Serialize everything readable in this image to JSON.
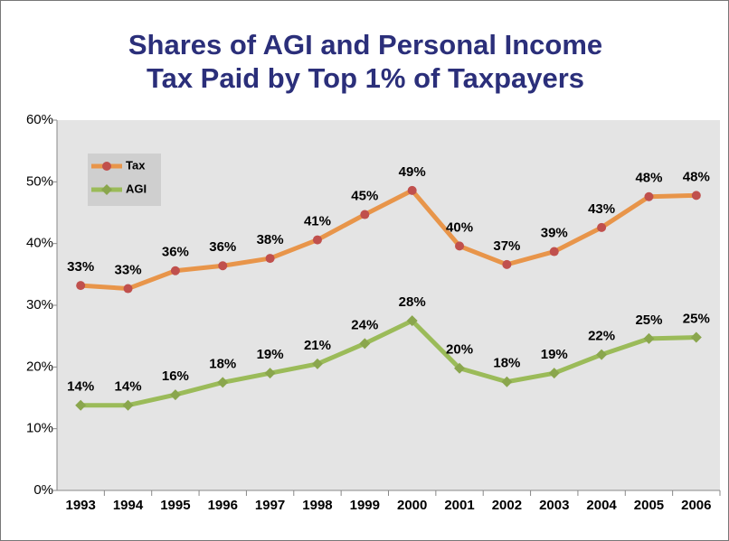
{
  "chart_data": {
    "type": "line",
    "title": [
      "Shares of AGI and Personal Income",
      "Tax Paid by Top 1% of Taxpayers"
    ],
    "categories": [
      "1993",
      "1994",
      "1995",
      "1996",
      "1997",
      "1998",
      "1999",
      "2000",
      "2001",
      "2002",
      "2003",
      "2004",
      "2005",
      "2006"
    ],
    "series": [
      {
        "name": "Tax",
        "color": "#e8954a",
        "marker_color": "#c0504d",
        "marker": "circle",
        "values": [
          33.2,
          32.7,
          35.6,
          36.4,
          37.6,
          40.6,
          44.7,
          48.6,
          39.6,
          36.6,
          38.7,
          42.6,
          47.6,
          47.8
        ],
        "value_labels": [
          "33%",
          "33%",
          "36%",
          "36%",
          "38%",
          "41%",
          "45%",
          "49%",
          "40%",
          "37%",
          "39%",
          "43%",
          "48%",
          "48%"
        ]
      },
      {
        "name": "AGI",
        "color": "#9bbb59",
        "marker_color": "#8aa64d",
        "marker": "diamond",
        "values": [
          13.8,
          13.8,
          15.5,
          17.5,
          19.0,
          20.5,
          23.8,
          27.5,
          19.8,
          17.6,
          19.0,
          22.0,
          24.6,
          24.8
        ],
        "value_labels": [
          "14%",
          "14%",
          "16%",
          "18%",
          "19%",
          "21%",
          "24%",
          "28%",
          "20%",
          "18%",
          "19%",
          "22%",
          "25%",
          "25%"
        ]
      }
    ],
    "ylim": [
      0,
      60
    ],
    "yticks": [
      {
        "value": 0,
        "label": "0%"
      },
      {
        "value": 10,
        "label": "10%"
      },
      {
        "value": 20,
        "label": "20%"
      },
      {
        "value": 30,
        "label": "30%"
      },
      {
        "value": 40,
        "label": "40%"
      },
      {
        "value": 50,
        "label": "50%"
      },
      {
        "value": 60,
        "label": "60%"
      }
    ],
    "legend": "upper left",
    "plot_background": "#e4e4e4"
  }
}
